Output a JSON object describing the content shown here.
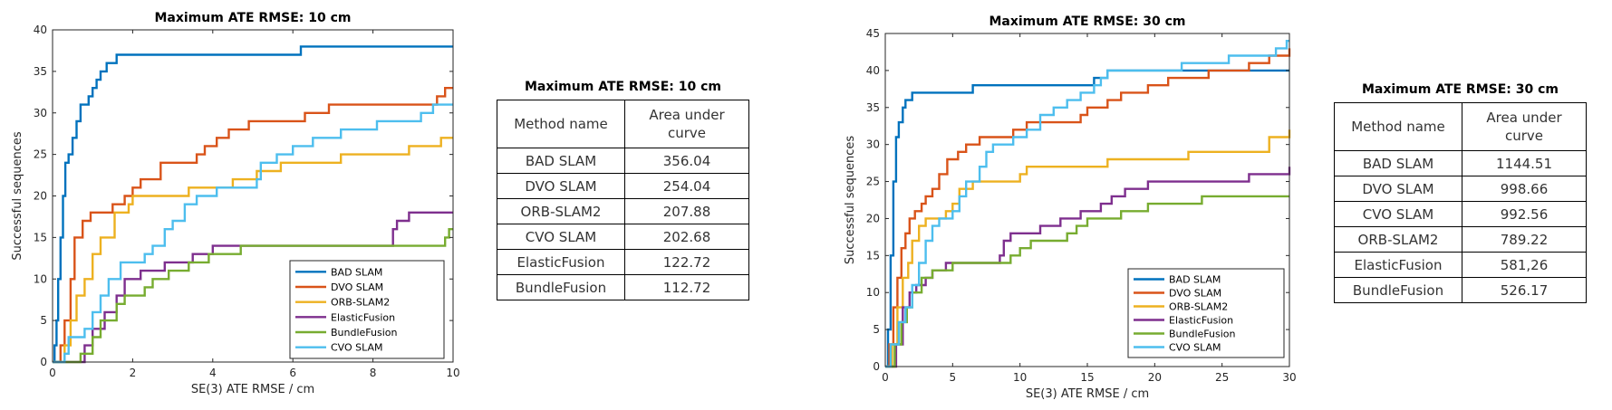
{
  "chart_data": [
    {
      "type": "line",
      "title": "Maximum ATE RMSE: 10 cm",
      "xlabel": "SE(3) ATE RMSE / cm",
      "ylabel": "Successful sequences",
      "xlim": [
        0,
        10
      ],
      "ylim": [
        0,
        40
      ],
      "xticks": [
        0,
        2,
        4,
        6,
        8,
        10
      ],
      "yticks": [
        0,
        5,
        10,
        15,
        20,
        25,
        30,
        35,
        40
      ],
      "grid": false,
      "legend_position": "lower-right",
      "series": [
        {
          "name": "BAD SLAM",
          "color": "#0072BD",
          "points": [
            [
              0,
              0
            ],
            [
              0.05,
              2
            ],
            [
              0.1,
              5
            ],
            [
              0.14,
              10
            ],
            [
              0.2,
              15
            ],
            [
              0.26,
              20
            ],
            [
              0.32,
              24
            ],
            [
              0.4,
              25
            ],
            [
              0.5,
              27
            ],
            [
              0.6,
              29
            ],
            [
              0.7,
              31
            ],
            [
              0.9,
              32
            ],
            [
              1.0,
              33
            ],
            [
              1.1,
              34
            ],
            [
              1.2,
              35
            ],
            [
              1.35,
              36
            ],
            [
              1.6,
              37
            ],
            [
              6.2,
              38
            ],
            [
              10,
              38
            ]
          ]
        },
        {
          "name": "DVO SLAM",
          "color": "#D95319",
          "points": [
            [
              0,
              0
            ],
            [
              0.2,
              2
            ],
            [
              0.3,
              5
            ],
            [
              0.45,
              10
            ],
            [
              0.55,
              15
            ],
            [
              0.75,
              17
            ],
            [
              0.95,
              18
            ],
            [
              1.5,
              19
            ],
            [
              1.8,
              20
            ],
            [
              2.0,
              21
            ],
            [
              2.2,
              22
            ],
            [
              2.7,
              24
            ],
            [
              3.6,
              25
            ],
            [
              3.8,
              26
            ],
            [
              4.1,
              27
            ],
            [
              4.4,
              28
            ],
            [
              4.9,
              29
            ],
            [
              6.3,
              30
            ],
            [
              6.9,
              31
            ],
            [
              9.6,
              32
            ],
            [
              9.8,
              33
            ],
            [
              10,
              33
            ]
          ]
        },
        {
          "name": "ORB-SLAM2",
          "color": "#EDB120",
          "points": [
            [
              0,
              0
            ],
            [
              0.3,
              2
            ],
            [
              0.45,
              5
            ],
            [
              0.6,
              8
            ],
            [
              0.8,
              10
            ],
            [
              1.0,
              13
            ],
            [
              1.2,
              15
            ],
            [
              1.55,
              18
            ],
            [
              1.9,
              19
            ],
            [
              2.0,
              20
            ],
            [
              3.4,
              21
            ],
            [
              4.5,
              22
            ],
            [
              5.1,
              23
            ],
            [
              5.7,
              24
            ],
            [
              7.2,
              25
            ],
            [
              8.9,
              26
            ],
            [
              9.7,
              27
            ],
            [
              10,
              27
            ]
          ]
        },
        {
          "name": "ElasticFusion",
          "color": "#7E2F8E",
          "points": [
            [
              0,
              0
            ],
            [
              0.8,
              2
            ],
            [
              1.0,
              4
            ],
            [
              1.3,
              6
            ],
            [
              1.6,
              8
            ],
            [
              1.8,
              10
            ],
            [
              2.2,
              11
            ],
            [
              2.8,
              12
            ],
            [
              3.5,
              13
            ],
            [
              4.0,
              14
            ],
            [
              8.5,
              16
            ],
            [
              8.6,
              17
            ],
            [
              8.9,
              18
            ],
            [
              10,
              18
            ]
          ]
        },
        {
          "name": "BundleFusion",
          "color": "#77AC30",
          "points": [
            [
              0,
              0
            ],
            [
              0.7,
              1
            ],
            [
              1.0,
              3
            ],
            [
              1.2,
              5
            ],
            [
              1.6,
              7
            ],
            [
              1.8,
              8
            ],
            [
              2.3,
              9
            ],
            [
              2.5,
              10
            ],
            [
              2.9,
              11
            ],
            [
              3.4,
              12
            ],
            [
              3.9,
              13
            ],
            [
              4.7,
              14
            ],
            [
              9.8,
              15
            ],
            [
              9.9,
              16
            ],
            [
              10,
              16
            ]
          ]
        },
        {
          "name": "CVO SLAM",
          "color": "#4DBEEE",
          "points": [
            [
              0,
              0
            ],
            [
              0.3,
              1
            ],
            [
              0.4,
              3
            ],
            [
              0.8,
              4
            ],
            [
              1.0,
              6
            ],
            [
              1.2,
              8
            ],
            [
              1.4,
              10
            ],
            [
              1.7,
              12
            ],
            [
              2.3,
              13
            ],
            [
              2.5,
              14
            ],
            [
              2.8,
              16
            ],
            [
              3.0,
              17
            ],
            [
              3.3,
              19
            ],
            [
              3.6,
              20
            ],
            [
              4.1,
              21
            ],
            [
              5.1,
              22
            ],
            [
              5.2,
              24
            ],
            [
              5.6,
              25
            ],
            [
              6.0,
              26
            ],
            [
              6.5,
              27
            ],
            [
              7.2,
              28
            ],
            [
              8.1,
              29
            ],
            [
              9.2,
              30
            ],
            [
              9.5,
              31
            ],
            [
              10,
              31
            ]
          ]
        }
      ]
    },
    {
      "type": "line",
      "title": "Maximum ATE RMSE: 30 cm",
      "xlabel": "SE(3) ATE RMSE / cm",
      "ylabel": "Successful sequences",
      "xlim": [
        0,
        30
      ],
      "ylim": [
        0,
        45
      ],
      "xticks": [
        0,
        5,
        10,
        15,
        20,
        25,
        30
      ],
      "yticks": [
        0,
        5,
        10,
        15,
        20,
        25,
        30,
        35,
        40,
        45
      ],
      "grid": false,
      "legend_position": "lower-right",
      "series": [
        {
          "name": "BAD SLAM",
          "color": "#0072BD",
          "points": [
            [
              0,
              0
            ],
            [
              0.2,
              5
            ],
            [
              0.4,
              15
            ],
            [
              0.6,
              25
            ],
            [
              0.8,
              31
            ],
            [
              1.0,
              33
            ],
            [
              1.3,
              35
            ],
            [
              1.5,
              36
            ],
            [
              2.0,
              37
            ],
            [
              6.5,
              38
            ],
            [
              15.5,
              39
            ],
            [
              16.5,
              40
            ],
            [
              30,
              40
            ]
          ]
        },
        {
          "name": "DVO SLAM",
          "color": "#D95319",
          "points": [
            [
              0,
              0
            ],
            [
              0.3,
              3
            ],
            [
              0.6,
              8
            ],
            [
              0.9,
              12
            ],
            [
              1.2,
              16
            ],
            [
              1.5,
              18
            ],
            [
              1.8,
              20
            ],
            [
              2.2,
              21
            ],
            [
              2.7,
              22
            ],
            [
              3.0,
              23
            ],
            [
              3.5,
              24
            ],
            [
              4.0,
              26
            ],
            [
              4.6,
              28
            ],
            [
              5.4,
              29
            ],
            [
              6.0,
              30
            ],
            [
              7.0,
              31
            ],
            [
              9.5,
              32
            ],
            [
              10.5,
              33
            ],
            [
              14.5,
              34
            ],
            [
              15.0,
              35
            ],
            [
              16.5,
              36
            ],
            [
              17.5,
              37
            ],
            [
              19.5,
              38
            ],
            [
              21.0,
              39
            ],
            [
              24.0,
              40
            ],
            [
              27.0,
              41
            ],
            [
              28.5,
              42
            ],
            [
              30,
              43
            ]
          ]
        },
        {
          "name": "ORB-SLAM2",
          "color": "#EDB120",
          "points": [
            [
              0,
              0
            ],
            [
              0.5,
              3
            ],
            [
              0.9,
              8
            ],
            [
              1.3,
              12
            ],
            [
              1.7,
              14
            ],
            [
              2.0,
              17
            ],
            [
              2.5,
              19
            ],
            [
              3.0,
              20
            ],
            [
              4.5,
              21
            ],
            [
              5.0,
              22
            ],
            [
              5.5,
              24
            ],
            [
              6.5,
              25
            ],
            [
              10.0,
              26
            ],
            [
              10.5,
              27
            ],
            [
              16.5,
              28
            ],
            [
              22.5,
              29
            ],
            [
              28.5,
              31
            ],
            [
              30,
              32
            ]
          ]
        },
        {
          "name": "ElasticFusion",
          "color": "#7E2F8E",
          "points": [
            [
              0,
              0
            ],
            [
              0.8,
              3
            ],
            [
              1.3,
              8
            ],
            [
              1.8,
              10
            ],
            [
              2.3,
              11
            ],
            [
              3.0,
              12
            ],
            [
              3.5,
              13
            ],
            [
              4.5,
              14
            ],
            [
              8.5,
              15
            ],
            [
              8.8,
              17
            ],
            [
              9.3,
              18
            ],
            [
              11.5,
              19
            ],
            [
              13.0,
              20
            ],
            [
              14.5,
              21
            ],
            [
              16.0,
              22
            ],
            [
              16.8,
              23
            ],
            [
              17.8,
              24
            ],
            [
              19.5,
              25
            ],
            [
              27.0,
              26
            ],
            [
              30,
              27
            ]
          ]
        },
        {
          "name": "BundleFusion",
          "color": "#77AC30",
          "points": [
            [
              0,
              0
            ],
            [
              0.7,
              3
            ],
            [
              1.2,
              6
            ],
            [
              1.6,
              8
            ],
            [
              2.0,
              10
            ],
            [
              2.7,
              12
            ],
            [
              3.5,
              13
            ],
            [
              5.0,
              14
            ],
            [
              9.3,
              15
            ],
            [
              10.0,
              16
            ],
            [
              10.8,
              17
            ],
            [
              13.5,
              18
            ],
            [
              14.2,
              19
            ],
            [
              15.0,
              20
            ],
            [
              17.5,
              21
            ],
            [
              19.5,
              22
            ],
            [
              23.5,
              23
            ],
            [
              30,
              23
            ]
          ]
        },
        {
          "name": "CVO SLAM",
          "color": "#4DBEEE",
          "points": [
            [
              0,
              0
            ],
            [
              0.4,
              3
            ],
            [
              1.0,
              6
            ],
            [
              1.5,
              8
            ],
            [
              2.0,
              11
            ],
            [
              2.5,
              14
            ],
            [
              3.0,
              17
            ],
            [
              3.5,
              19
            ],
            [
              4.0,
              20
            ],
            [
              5.0,
              21
            ],
            [
              5.5,
              23
            ],
            [
              6.0,
              25
            ],
            [
              7.0,
              27
            ],
            [
              7.5,
              29
            ],
            [
              8.0,
              30
            ],
            [
              9.5,
              31
            ],
            [
              10.5,
              32
            ],
            [
              11.5,
              34
            ],
            [
              12.5,
              35
            ],
            [
              13.5,
              36
            ],
            [
              14.5,
              37
            ],
            [
              15.5,
              38
            ],
            [
              16.0,
              39
            ],
            [
              16.5,
              40
            ],
            [
              22.0,
              41
            ],
            [
              25.5,
              42
            ],
            [
              29.0,
              43
            ],
            [
              29.8,
              44
            ],
            [
              30,
              44
            ]
          ]
        }
      ]
    }
  ],
  "tables": [
    {
      "title": "Maximum ATE RMSE: 10 cm",
      "headers": [
        "Method name",
        "Area under curve"
      ],
      "rows": [
        {
          "name": "BAD SLAM",
          "value": "356.04"
        },
        {
          "name": "DVO SLAM",
          "value": "254.04"
        },
        {
          "name": "ORB-SLAM2",
          "value": "207.88"
        },
        {
          "name": "CVO SLAM",
          "value": "202.68"
        },
        {
          "name": "ElasticFusion",
          "value": "122.72"
        },
        {
          "name": "BundleFusion",
          "value": "112.72"
        }
      ]
    },
    {
      "title": "Maximum ATE RMSE: 30 cm",
      "headers": [
        "Method name",
        "Area under curve"
      ],
      "rows": [
        {
          "name": "BAD SLAM",
          "value": "1144.51"
        },
        {
          "name": "DVO SLAM",
          "value": "998.66"
        },
        {
          "name": "CVO SLAM",
          "value": "992.56"
        },
        {
          "name": "ORB-SLAM2",
          "value": "789.22"
        },
        {
          "name": "ElasticFusion",
          "value": "581,26"
        },
        {
          "name": "BundleFusion",
          "value": "526.17"
        }
      ]
    }
  ]
}
